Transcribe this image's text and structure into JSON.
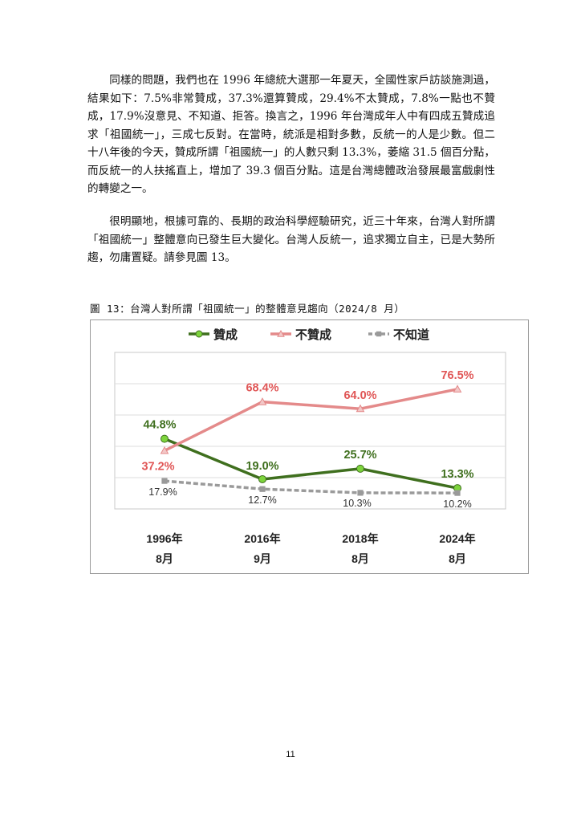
{
  "paragraphs": [
    "同樣的問題，我們也在 1996 年總統大選那一年夏天，全國性家戶訪談施測過，結果如下：7.5%非常贊成，37.3%還算贊成，29.4%不太贊成，7.8%一點也不贊成，17.9%沒意見、不知道、拒答。換言之，1996 年台灣成年人中有四成五贊成追求「祖國統一」，三成七反對。在當時，統派是相對多數，反統一的人是少數。但二十八年後的今天，贊成所謂「祖國統一」的人數只剩 13.3%，萎縮 31.5 個百分點，而反統一的人扶搖直上，增加了 39.3 個百分點。這是台灣總體政治發展最富戲劇性的轉變之一。",
    "很明顯地，根據可靠的、長期的政治科學經驗研究，近三十年來，台灣人對所謂「祖國統一」整體意向已發生巨大變化。台灣人反統一，追求獨立自主，已是大勢所趨，勿庸置疑。請參見圖 13。"
  ],
  "figure_caption": "圖 13：台灣人對所謂「祖國統一」的整體意見趨向（2024/8 月）",
  "page_number": "11",
  "chart_data": {
    "type": "line",
    "categories": [
      [
        "1996年",
        "8月"
      ],
      [
        "2016年",
        "9月"
      ],
      [
        "2018年",
        "8月"
      ],
      [
        "2024年",
        "8月"
      ]
    ],
    "series": [
      {
        "name": "贊成",
        "values": [
          44.8,
          19.0,
          25.7,
          13.3
        ],
        "labels": [
          "44.8%",
          "19.0%",
          "25.7%",
          "13.3%"
        ],
        "color": "#3f6f1e",
        "marker_fill": "#7dd43c",
        "marker": "circle",
        "dashed": false,
        "bold_labels": true
      },
      {
        "name": "不贊成",
        "values": [
          37.2,
          68.4,
          64.0,
          76.5
        ],
        "labels": [
          "37.2%",
          "68.4%",
          "64.0%",
          "76.5%"
        ],
        "color": "#e48a8a",
        "label_color": "#e05656",
        "marker_fill": "#f2c8c8",
        "marker": "triangle",
        "dashed": false,
        "bold_labels": true
      },
      {
        "name": "不知道",
        "values": [
          17.9,
          12.7,
          10.3,
          10.2
        ],
        "labels": [
          "17.9%",
          "12.7%",
          "10.3%",
          "10.2%"
        ],
        "color": "#9a9a9a",
        "label_color": "#333333",
        "marker_fill": "#9a9a9a",
        "marker": "square",
        "dashed": true,
        "bold_labels": false
      }
    ],
    "ylim": [
      0,
      100
    ],
    "grid": true,
    "legend": "top"
  }
}
